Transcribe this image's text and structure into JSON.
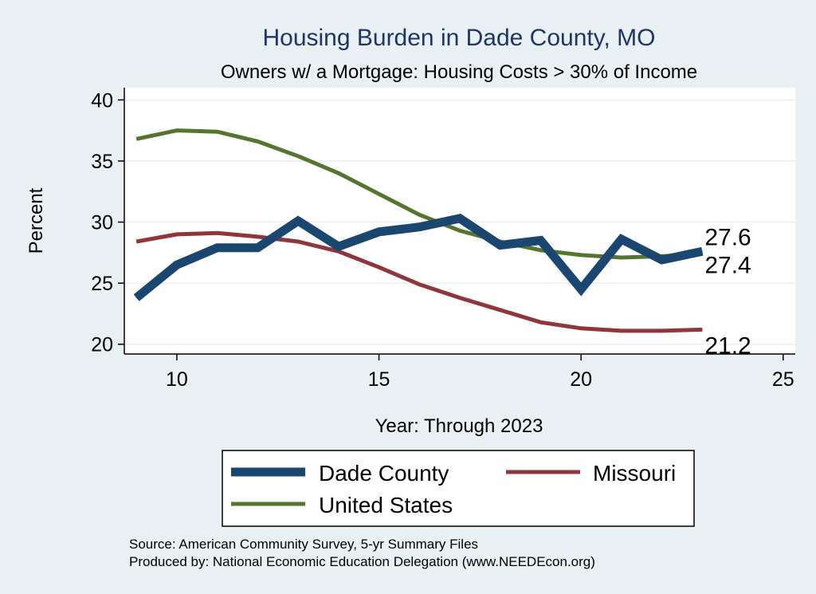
{
  "chart_data": {
    "type": "line",
    "title": "Housing Burden in Dade County, MO",
    "subtitle": "Owners w/ a Mortgage: Housing Costs > 30% of Income",
    "xlabel": "Year: Through 2023",
    "ylabel": "Percent",
    "xlim": [
      8.7,
      25.3
    ],
    "ylim": [
      19.2,
      41.0
    ],
    "xticks": [
      10,
      15,
      20,
      25
    ],
    "yticks": [
      20,
      25,
      30,
      35,
      40
    ],
    "x": [
      9,
      10,
      11,
      12,
      13,
      14,
      15,
      16,
      17,
      18,
      19,
      20,
      21,
      22,
      23
    ],
    "series": [
      {
        "name": "Dade County",
        "color": "#1a476f",
        "values": [
          23.8,
          26.5,
          27.9,
          27.9,
          30.1,
          28.0,
          29.2,
          29.6,
          30.3,
          28.1,
          28.5,
          24.5,
          28.6,
          26.9,
          27.6
        ],
        "end_label": "27.6",
        "width": "thick"
      },
      {
        "name": "Missouri",
        "color": "#90353b",
        "values": [
          28.4,
          29.0,
          29.1,
          28.8,
          28.4,
          27.6,
          26.3,
          24.9,
          23.8,
          22.8,
          21.8,
          21.3,
          21.1,
          21.1,
          21.2
        ],
        "end_label": "21.2",
        "width": "normal"
      },
      {
        "name": "United States",
        "color": "#55752f",
        "values": [
          36.8,
          37.5,
          37.4,
          36.6,
          35.4,
          34.0,
          32.3,
          30.6,
          29.3,
          28.4,
          27.7,
          27.3,
          27.1,
          27.2,
          27.4
        ],
        "end_label": "27.4",
        "width": "normal"
      }
    ],
    "legend": {
      "position": "bottom",
      "items": [
        "Dade County",
        "Missouri",
        "United States"
      ]
    },
    "notes": [
      "Source: American Community Survey, 5-yr Summary Files",
      "Produced by: National Economic Education Delegation (www.NEEDEcon.org)"
    ]
  }
}
